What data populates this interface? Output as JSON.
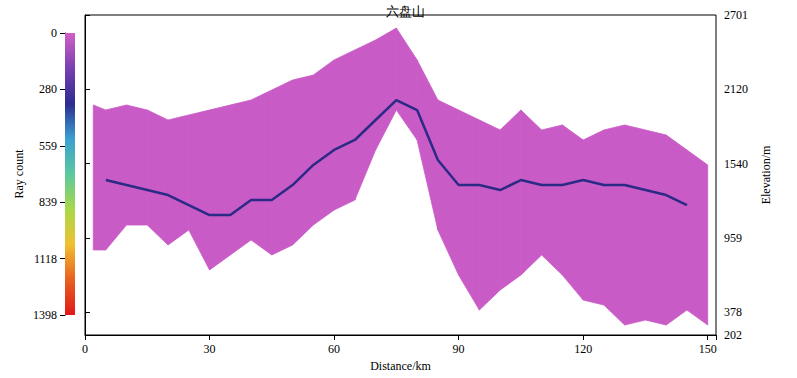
{
  "chart_data": {
    "type": "ray_density",
    "title": "六盘山",
    "x": [
      2,
      5,
      10,
      15,
      20,
      25,
      30,
      35,
      40,
      45,
      50,
      55,
      60,
      65,
      70,
      75,
      80,
      85,
      90,
      95,
      100,
      105,
      110,
      115,
      120,
      125,
      130,
      135,
      140,
      145,
      150
    ],
    "xlabel": "Distance/km",
    "xlim": [
      0,
      152
    ],
    "xticks": [
      0,
      30,
      60,
      90,
      120,
      150
    ],
    "ylabel": "Elevation/m",
    "ylim": [
      202,
      2701
    ],
    "yticks": [
      202,
      378,
      959,
      1540,
      2120,
      2701
    ],
    "grid": false,
    "series": [
      {
        "type": "band",
        "color": "#c95bc6",
        "upper": [
          1998,
          1959,
          1998,
          1959,
          1881,
          1920,
          1959,
          1998,
          2037,
          2115,
          2193,
          2232,
          2350,
          2428,
          2506,
          2599,
          2350,
          2037,
          1959,
          1881,
          1803,
          1959,
          1803,
          1842,
          1725,
          1803,
          1842,
          1803,
          1764,
          1647,
          1530
        ],
        "lower": [
          866,
          866,
          1061,
          1061,
          905,
          1022,
          710,
          827,
          944,
          827,
          905,
          1061,
          1178,
          1256,
          1647,
          1959,
          1725,
          1022,
          670,
          397,
          553,
          670,
          827,
          670,
          475,
          436,
          280,
          319,
          280,
          397,
          280
        ]
      },
      {
        "type": "line",
        "color": "#2b2a86",
        "values": [
          null,
          1412,
          1373,
          1334,
          1295,
          1217,
          1139,
          1139,
          1256,
          1256,
          1373,
          1530,
          1647,
          1725,
          1881,
          2037,
          1959,
          1569,
          1373,
          1373,
          1334,
          1412,
          1373,
          1373,
          1412,
          1373,
          1373,
          1334,
          1295,
          1217,
          null
        ]
      }
    ],
    "colorbar": {
      "label": "Ray count",
      "range": [
        0,
        1398
      ],
      "ticks": [
        0,
        280,
        559,
        839,
        1118,
        1398
      ],
      "colors": [
        "#d060c8",
        "#7a40b0",
        "#2c2c90",
        "#3aa0d0",
        "#5cc8a0",
        "#a8d848",
        "#f0c030",
        "#e86020",
        "#e01818"
      ]
    }
  }
}
